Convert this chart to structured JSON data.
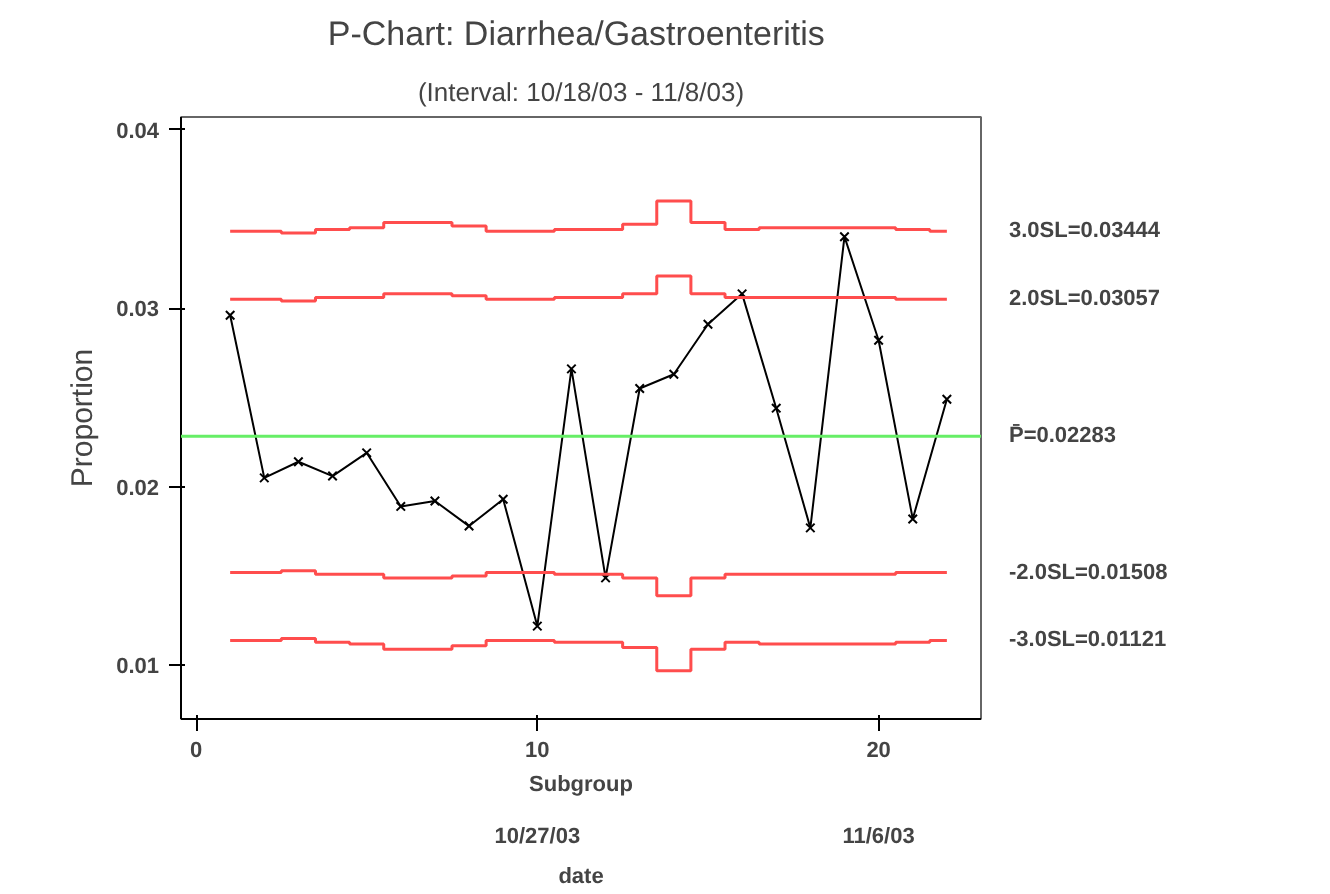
{
  "chart_data": {
    "type": "line",
    "title": "P-Chart:  Diarrhea/Gastroenteritis",
    "subtitle": "(Interval: 10/18/03 - 11/8/03)",
    "xlabel": "Subgroup",
    "ylabel": "Proportion",
    "x2label": "date",
    "x": [
      1,
      2,
      3,
      4,
      5,
      6,
      7,
      8,
      9,
      10,
      11,
      12,
      13,
      14,
      15,
      16,
      17,
      18,
      19,
      20,
      21,
      22
    ],
    "series": [
      {
        "color": "#000000",
        "marker": "cross",
        "values": [
          0.0296,
          0.0205,
          0.0214,
          0.0206,
          0.0219,
          0.0189,
          0.0192,
          0.0178,
          0.0193,
          0.0122,
          0.0266,
          0.0149,
          0.0255,
          0.0263,
          0.0291,
          0.0308,
          0.0244,
          0.0177,
          0.034,
          0.0282,
          0.0182,
          0.0249
        ]
      },
      {
        "type": "step",
        "name": "3.0SL=0.03444",
        "color": "#ff4d4d",
        "values": [
          0.0343,
          0.0343,
          0.0342,
          0.0344,
          0.0345,
          0.0348,
          0.0348,
          0.0346,
          0.0343,
          0.0343,
          0.0344,
          0.0344,
          0.0347,
          0.036,
          0.0348,
          0.0344,
          0.0345,
          0.0345,
          0.0345,
          0.0345,
          0.0344,
          0.0343
        ]
      },
      {
        "type": "step",
        "name": "2.0SL=0.03057",
        "color": "#ff4d4d",
        "values": [
          0.0305,
          0.0305,
          0.0304,
          0.0306,
          0.0306,
          0.0308,
          0.0308,
          0.0307,
          0.0305,
          0.0305,
          0.0306,
          0.0306,
          0.0308,
          0.0318,
          0.0308,
          0.0306,
          0.0306,
          0.0306,
          0.0306,
          0.0306,
          0.0305,
          0.0305
        ]
      },
      {
        "type": "step",
        "name": "-2.0SL=0.01508",
        "color": "#ff4d4d",
        "values": [
          0.0152,
          0.0152,
          0.0153,
          0.0151,
          0.0151,
          0.0149,
          0.0149,
          0.015,
          0.0152,
          0.0152,
          0.0151,
          0.0151,
          0.0149,
          0.0139,
          0.0149,
          0.0151,
          0.0151,
          0.0151,
          0.0151,
          0.0151,
          0.0152,
          0.0152
        ]
      },
      {
        "type": "step",
        "name": "-3.0SL=0.01121",
        "color": "#ff4d4d",
        "values": [
          0.0114,
          0.0114,
          0.0115,
          0.0113,
          0.0112,
          0.0109,
          0.0109,
          0.0111,
          0.0114,
          0.0114,
          0.0113,
          0.0113,
          0.011,
          0.0097,
          0.0109,
          0.0113,
          0.0112,
          0.0112,
          0.0112,
          0.0112,
          0.0113,
          0.0114
        ]
      }
    ],
    "ref_lines": [
      {
        "axis": "y",
        "value": 0.02283,
        "label": "P̄=0.02283",
        "color": "#66ee66"
      }
    ],
    "xlim": [
      -0.44,
      23.0
    ],
    "xticks": [
      0,
      10,
      20
    ],
    "x2lim": [
      "2003-10-16T13:26",
      "2003-11-09"
    ],
    "x2ticks": [
      {
        "value": "2003-10-27",
        "label": "10/27/03"
      },
      {
        "value": "2003-11-06",
        "label": "11/6/03"
      }
    ],
    "ylim": [
      0.007,
      0.0407
    ],
    "yticks": [
      0.01,
      0.02,
      0.03,
      0.04
    ],
    "grid": false
  }
}
